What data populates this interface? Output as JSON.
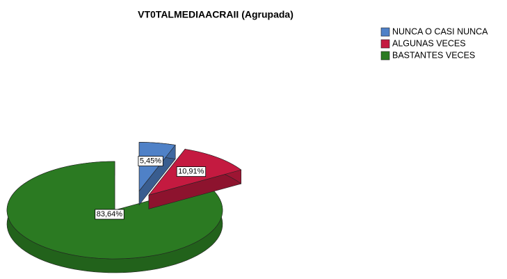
{
  "chart_data": {
    "type": "pie3d",
    "title": "VT0TALMEDIAACRAII (Agrupada)",
    "categories": [
      "NUNCA O CASI NUNCA",
      "ALGUNAS VECES",
      "BASTANTES VECES"
    ],
    "values": [
      5.45,
      10.91,
      83.64
    ],
    "value_labels": [
      "5,45%",
      "10,91%",
      "83,64%"
    ],
    "colors": [
      "#4f81c7",
      "#c41a40",
      "#2b7a22"
    ],
    "legend": "top-right"
  }
}
